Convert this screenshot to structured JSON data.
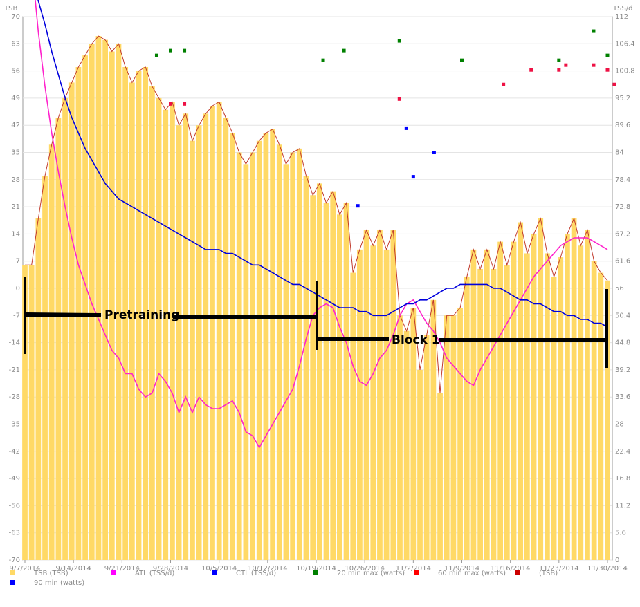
{
  "chart_data": {
    "type": "bar",
    "title": "",
    "xlabel": "",
    "y_left_label": "TSB",
    "y_right_label": "TSS/d",
    "ylim_left": [
      -70,
      70
    ],
    "ylim_right": [
      0,
      112
    ],
    "left_ticks": [
      "70",
      "63",
      "56",
      "49",
      "42",
      "35",
      "28",
      "21",
      "14",
      "7",
      "0",
      "-7",
      "-14",
      "-21",
      "-28",
      "-35",
      "-42",
      "-49",
      "-56",
      "-63",
      "-70"
    ],
    "right_ticks": [
      "112",
      "106.4",
      "100.8",
      "95.2",
      "89.6",
      "84",
      "78.4",
      "72.8",
      "67.2",
      "61.6",
      "56",
      "50.4",
      "44.8",
      "39.2",
      "33.6",
      "28",
      "22.4",
      "16.8",
      "11.2",
      "5.6",
      "0"
    ],
    "x_ticks": [
      "9/7/2014",
      "9/14/2014",
      "9/21/2014",
      "9/28/2014",
      "10/5/2014",
      "10/12/2014",
      "10/19/2014",
      "10/26/2014",
      "11/2/2014",
      "11/9/2014",
      "11/16/2014",
      "11/23/2014",
      "11/30/2014"
    ],
    "start_date": "9/7/2014",
    "tsb": [
      6,
      6,
      18,
      29,
      37,
      44,
      49,
      53,
      57,
      60,
      63,
      65,
      64,
      61,
      63,
      57,
      53,
      56,
      57,
      52,
      49,
      46,
      48,
      42,
      45,
      38,
      42,
      45,
      47,
      48,
      44,
      40,
      35,
      32,
      35,
      38,
      40,
      41,
      37,
      32,
      35,
      36,
      29,
      24,
      27,
      22,
      25,
      19,
      22,
      4,
      10,
      15,
      11,
      15,
      10,
      15,
      -7,
      -11,
      -5,
      -21,
      -12,
      -3,
      -27,
      -7,
      -7,
      -5,
      3,
      10,
      5,
      10,
      5,
      12,
      6,
      12,
      17,
      9,
      14,
      18,
      9,
      3,
      8,
      14,
      18,
      11,
      15,
      7,
      4,
      2
    ],
    "atl": [
      102,
      84,
      66,
      52,
      40,
      30,
      21,
      13,
      6,
      1,
      -4,
      -8,
      -12,
      -16,
      -18,
      -22,
      -22,
      -26,
      -28,
      -27,
      -22,
      -24,
      -27,
      -32,
      -28,
      -32,
      -28,
      -30,
      -31,
      -31,
      -30,
      -29,
      -32,
      -37,
      -38,
      -41,
      -38,
      -35,
      -32,
      -29,
      -26,
      -20,
      -13,
      -7,
      -5,
      -4,
      -5,
      -10,
      -14,
      -20,
      -24,
      -25,
      -22,
      -18,
      -16,
      -12,
      -7,
      -4,
      -3,
      -6,
      -9,
      -11,
      -14,
      -18,
      -20,
      -22,
      -24,
      -25,
      -21,
      -18,
      -15,
      -12,
      -9,
      -6,
      -3,
      0,
      3,
      5,
      7,
      9,
      11,
      12,
      13,
      13,
      13,
      12,
      11,
      10
    ],
    "ctl": [
      88,
      81,
      74,
      68,
      61,
      55,
      49,
      44,
      40,
      36,
      33,
      30,
      27,
      25,
      23,
      22,
      21,
      20,
      19,
      18,
      17,
      16,
      15,
      14,
      13,
      12,
      11,
      10,
      10,
      10,
      9,
      9,
      8,
      7,
      6,
      6,
      5,
      4,
      3,
      2,
      1,
      1,
      0,
      -1,
      -2,
      -3,
      -4,
      -5,
      -5,
      -5,
      -6,
      -6,
      -7,
      -7,
      -7,
      -6,
      -5,
      -4,
      -4,
      -3,
      -3,
      -2,
      -1,
      0,
      0,
      1,
      1,
      1,
      1,
      1,
      0,
      0,
      -1,
      -2,
      -3,
      -3,
      -4,
      -4,
      -5,
      -6,
      -6,
      -7,
      -7,
      -8,
      -8,
      -9,
      -9,
      -10
    ],
    "pts_20min_watts": [
      [
        "9/26/2014",
        104
      ],
      [
        "9/28/2014",
        105
      ],
      [
        "9/30/2014",
        105
      ],
      [
        "10/20/2014",
        103
      ],
      [
        "10/23/2014",
        105
      ],
      [
        "10/31/2014",
        107
      ],
      [
        "11/9/2014",
        103
      ],
      [
        "11/23/2014",
        103
      ],
      [
        "11/28/2014",
        109
      ],
      [
        "11/30/2014",
        104
      ]
    ],
    "pts_60min_watts": [
      [
        "9/28/2014",
        94
      ],
      [
        "9/30/2014",
        94
      ],
      [
        "10/31/2014",
        95
      ],
      [
        "11/15/2014",
        98
      ],
      [
        "11/19/2014",
        101
      ],
      [
        "11/23/2014",
        101
      ],
      [
        "11/24/2014",
        102
      ],
      [
        "11/28/2014",
        102
      ],
      [
        "11/30/2014",
        101
      ],
      [
        "12/1/2014",
        98
      ]
    ],
    "pts_90min_watts": [
      [
        "10/25/2014",
        73
      ],
      [
        "11/1/2014",
        89
      ],
      [
        "11/2/2014",
        79
      ],
      [
        "11/5/2014",
        84
      ]
    ],
    "legend": [
      {
        "label": "TSB (TSB)",
        "color": "#FFD966"
      },
      {
        "label": "ATL (TSS/d)",
        "color": "#FF00FF"
      },
      {
        "label": "CTL (TSS/d)",
        "color": "#0000FF"
      },
      {
        "label": "20 min max (watts)",
        "color": "#008000"
      },
      {
        "label": "60 min max (watts)",
        "color": "#FF0000"
      },
      {
        "label": "(TSB)",
        "color": "#CC0000"
      },
      {
        "label": "90 min (watts)",
        "color": "#0000FF"
      }
    ],
    "annotations": [
      {
        "label": "Pretraining"
      },
      {
        "label": "Block 1"
      }
    ]
  }
}
